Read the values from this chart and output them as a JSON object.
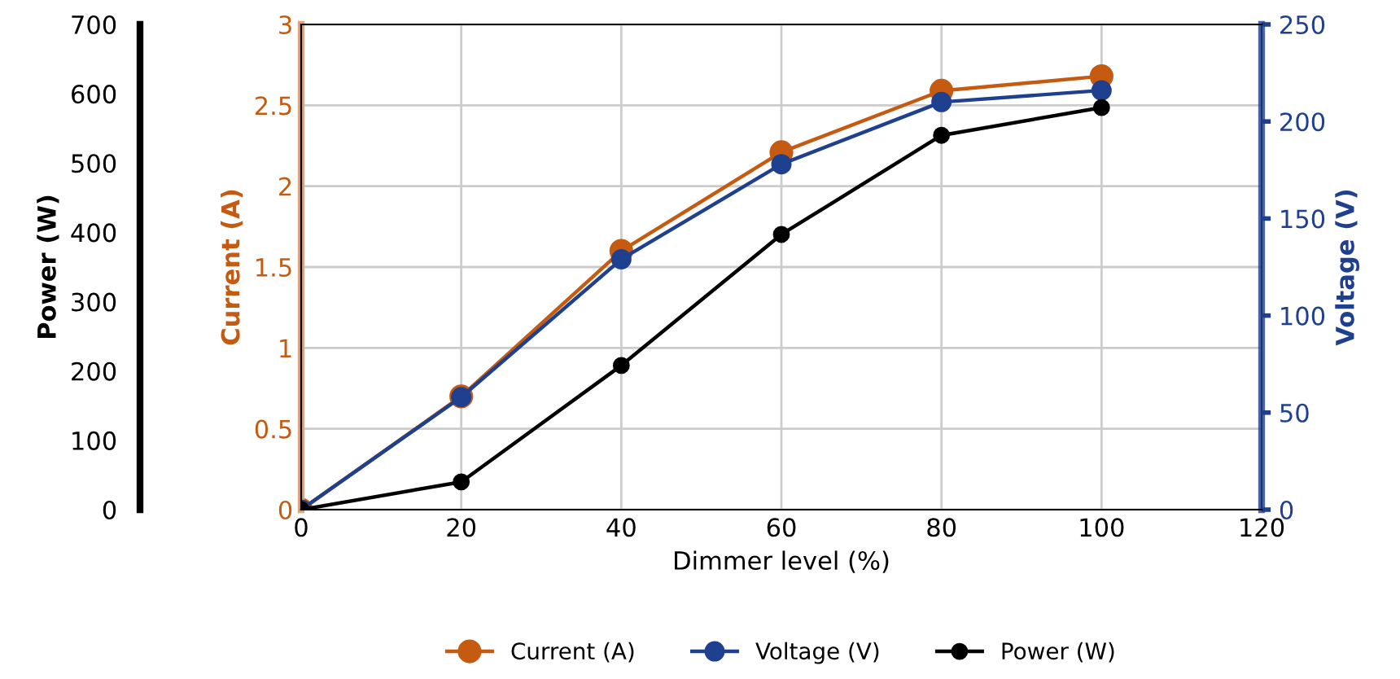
{
  "chart_data": {
    "type": "line",
    "xlabel": "Dimmer level (%)",
    "ylabel": "Current (A)",
    "y2label": "Voltage (V)",
    "y3label": "Power (W)",
    "x": [
      0,
      20,
      40,
      60,
      80,
      100
    ],
    "xlim": [
      0,
      120
    ],
    "xticks": [
      0,
      20,
      40,
      60,
      80,
      100,
      120
    ],
    "ylim": [
      0,
      3
    ],
    "yticks": [
      0,
      0.5,
      1,
      1.5,
      2,
      2.5,
      3
    ],
    "y2lim": [
      0,
      250
    ],
    "y2ticks": [
      0,
      50,
      100,
      150,
      200,
      250
    ],
    "y3lim": [
      0,
      700
    ],
    "y3ticks": [
      0,
      100,
      200,
      300,
      400,
      500,
      600,
      700
    ],
    "series": [
      {
        "name": "Current (A)",
        "color": "#c55a11",
        "values": [
          0,
          0.7,
          1.6,
          2.21,
          2.59,
          2.68
        ]
      },
      {
        "name": "Voltage (V)",
        "color": "#1f3f8f",
        "axis": "y2",
        "values": [
          0,
          58,
          129,
          178,
          210,
          216
        ]
      },
      {
        "name": "Power (W)",
        "color": "#000000",
        "axis": "y3",
        "values": [
          0,
          40,
          208,
          397,
          540,
          580
        ]
      }
    ],
    "marker": "circle",
    "line_style": "solid",
    "grid": true,
    "legend": "bottom"
  }
}
